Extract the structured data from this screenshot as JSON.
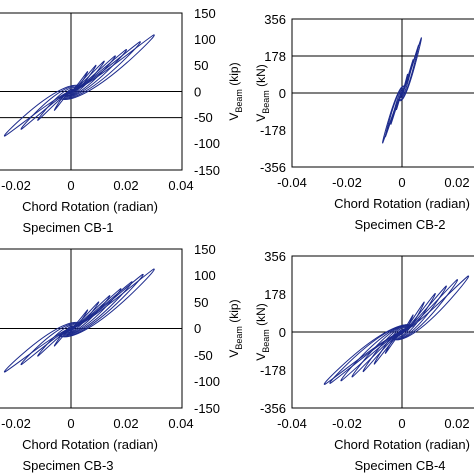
{
  "chart_data": [
    {
      "type": "line",
      "specimen": "Specimen CB-1",
      "xlabel": "Chord Rotation (radian)",
      "x_ticks": [
        "-0.02",
        "0",
        "0.02",
        "0.04"
      ],
      "xlim": [
        -0.04,
        0.04
      ],
      "ylabel": "V",
      "ylabel_sub": "Beam",
      "ylabel_unit": " (kip)",
      "y_ticks": [
        "150",
        "100",
        "50",
        "0",
        "-50",
        "-100",
        "-150"
      ],
      "ylim": [
        -150,
        150
      ],
      "h_lines": [
        -50
      ],
      "color": "#1c2a8c",
      "loops": [
        {
          "x": 0.006,
          "y": 38
        },
        {
          "x": 0.009,
          "y": 50
        },
        {
          "x": 0.012,
          "y": 58
        },
        {
          "x": 0.016,
          "y": 68
        },
        {
          "x": 0.02,
          "y": 80
        },
        {
          "x": 0.025,
          "y": 95
        },
        {
          "x": 0.03,
          "y": 108
        }
      ],
      "neg_loops": [
        {
          "x": -0.006,
          "y": -36
        },
        {
          "x": -0.012,
          "y": -55
        },
        {
          "x": -0.018,
          "y": -72
        },
        {
          "x": -0.024,
          "y": -85
        }
      ]
    },
    {
      "type": "line",
      "specimen": "Specimen CB-2",
      "xlabel": "Chord Rotation (radian)",
      "x_ticks": [
        "-0.04",
        "-0.02",
        "0",
        "0.02"
      ],
      "xlim": [
        -0.04,
        0.04
      ],
      "ylabel": "V",
      "ylabel_sub": "Beam",
      "ylabel_unit": " (kN)",
      "y_ticks": [
        "356",
        "178",
        "0",
        "-178",
        "-356"
      ],
      "ylim": [
        -356,
        356
      ],
      "h_lines": [
        178
      ],
      "color": "#1c2a8c",
      "loops": [
        {
          "x": 0.002,
          "y": 90
        },
        {
          "x": 0.004,
          "y": 160
        },
        {
          "x": 0.006,
          "y": 230
        },
        {
          "x": 0.007,
          "y": 265
        }
      ],
      "neg_loops": [
        {
          "x": -0.002,
          "y": -80
        },
        {
          "x": -0.004,
          "y": -150
        },
        {
          "x": -0.006,
          "y": -210
        },
        {
          "x": -0.007,
          "y": -240
        }
      ]
    },
    {
      "type": "line",
      "specimen": "Specimen CB-3",
      "xlabel": "Chord Rotation (radian)",
      "x_ticks": [
        "-0.02",
        "0",
        "0.02",
        "0.04"
      ],
      "xlim": [
        -0.04,
        0.04
      ],
      "ylabel": "V",
      "ylabel_sub": "Beam",
      "ylabel_unit": " (kip)",
      "y_ticks": [
        "150",
        "100",
        "50",
        "0",
        "-50",
        "-100",
        "-150"
      ],
      "ylim": [
        -150,
        150
      ],
      "h_lines": [],
      "color": "#1c2a8c",
      "loops": [
        {
          "x": 0.006,
          "y": 35
        },
        {
          "x": 0.01,
          "y": 50
        },
        {
          "x": 0.014,
          "y": 62
        },
        {
          "x": 0.018,
          "y": 75
        },
        {
          "x": 0.022,
          "y": 88
        },
        {
          "x": 0.026,
          "y": 102
        },
        {
          "x": 0.03,
          "y": 112
        }
      ],
      "neg_loops": [
        {
          "x": -0.006,
          "y": -33
        },
        {
          "x": -0.012,
          "y": -52
        },
        {
          "x": -0.018,
          "y": -68
        },
        {
          "x": -0.024,
          "y": -82
        }
      ]
    },
    {
      "type": "line",
      "specimen": "Specimen CB-4",
      "xlabel": "Chord Rotation (radian)",
      "x_ticks": [
        "-0.04",
        "-0.02",
        "0",
        "0.02"
      ],
      "xlim": [
        -0.04,
        0.04
      ],
      "ylabel": "V",
      "ylabel_sub": "Beam",
      "ylabel_unit": " (kN)",
      "y_ticks": [
        "356",
        "178",
        "0",
        "-178",
        "-356"
      ],
      "ylim": [
        -356,
        356
      ],
      "h_lines": [],
      "color": "#1c2a8c",
      "loops": [
        {
          "x": 0.004,
          "y": 80
        },
        {
          "x": 0.008,
          "y": 140
        },
        {
          "x": 0.012,
          "y": 180
        },
        {
          "x": 0.016,
          "y": 215
        },
        {
          "x": 0.02,
          "y": 245
        },
        {
          "x": 0.024,
          "y": 262
        }
      ],
      "neg_loops": [
        {
          "x": -0.006,
          "y": -100
        },
        {
          "x": -0.01,
          "y": -150
        },
        {
          "x": -0.014,
          "y": -185
        },
        {
          "x": -0.018,
          "y": -210
        },
        {
          "x": -0.022,
          "y": -228
        },
        {
          "x": -0.026,
          "y": -240
        },
        {
          "x": -0.028,
          "y": -245
        }
      ]
    }
  ]
}
